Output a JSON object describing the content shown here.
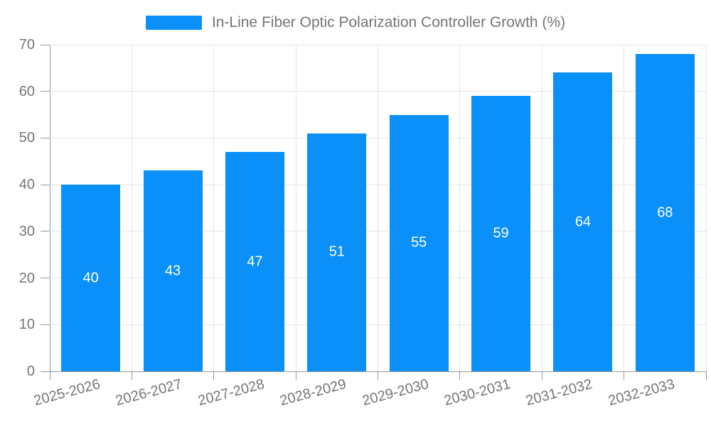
{
  "legend": {
    "label": "In-Line Fiber Optic Polarization Controller Growth (%)"
  },
  "chart_data": {
    "type": "bar",
    "title": "In-Line Fiber Optic Polarization Controller Growth (%)",
    "series_name": "In-Line Fiber Optic Polarization Controller Growth (%)",
    "categories": [
      "2025-2026",
      "2026-2027",
      "2027-2028",
      "2028-2029",
      "2029-2030",
      "2030-2031",
      "2031-2032",
      "2032-2033"
    ],
    "values": [
      40,
      43,
      47,
      51,
      55,
      59,
      64,
      68
    ],
    "xlabel": "",
    "ylabel": "",
    "ylim": [
      0,
      70
    ],
    "yticks": [
      0,
      10,
      20,
      30,
      40,
      50,
      60,
      70
    ],
    "grid": true,
    "legend_position": "top-center",
    "bar_labels_inside": true
  },
  "colors": {
    "bar": "#0a90f8",
    "axis_line": "#999999",
    "grid_line": "#e6e6e6",
    "tick_label": "#757575",
    "legend_text": "#757575",
    "value_label": "#ffffff"
  }
}
